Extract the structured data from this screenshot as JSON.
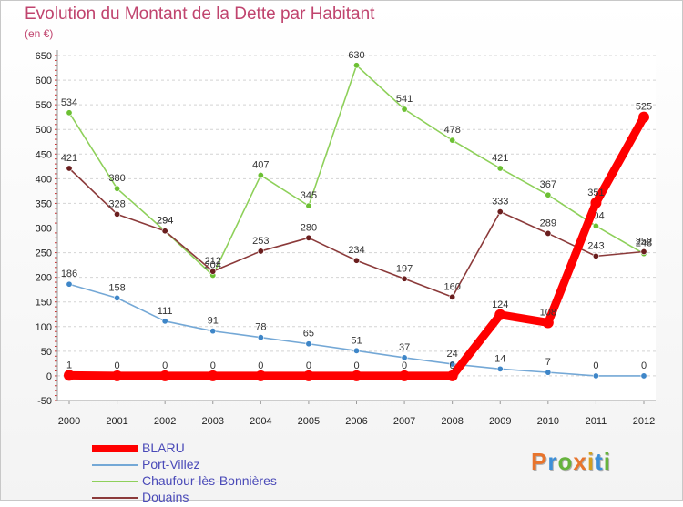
{
  "chart": {
    "title": "Evolution du Montant de la Dette par Habitant",
    "unit": "(en €)"
  },
  "logo": {
    "text": "Proxiti",
    "letters": [
      {
        "ch": "P",
        "color": "#e8742c"
      },
      {
        "ch": "r",
        "color": "#3c8fd8"
      },
      {
        "ch": "o",
        "color": "#66b33c"
      },
      {
        "ch": "x",
        "color": "#e8742c"
      },
      {
        "ch": "i",
        "color": "#d4a020"
      },
      {
        "ch": "t",
        "color": "#3c8fd8"
      },
      {
        "ch": "i",
        "color": "#66b33c"
      }
    ]
  },
  "chart_data": {
    "type": "line",
    "title": "Evolution du Montant de la Dette par Habitant",
    "ylabel": "(en €)",
    "xlabel": "",
    "x": [
      "2000",
      "2001",
      "2002",
      "2003",
      "2004",
      "2005",
      "2006",
      "2007",
      "2008",
      "2009",
      "2010",
      "2011",
      "2012"
    ],
    "ylim": [
      -50,
      650
    ],
    "yticks": [
      -50,
      0,
      50,
      100,
      150,
      200,
      250,
      300,
      350,
      400,
      450,
      500,
      550,
      600,
      650
    ],
    "grid": "horizontal dashed",
    "legend": "bottom-left",
    "series": [
      {
        "name": "Chaufour-lès-Bonnières",
        "color": "#8ed05a",
        "marker": "#6cc033",
        "values": [
          534,
          380,
          294,
          204,
          407,
          345,
          630,
          541,
          478,
          421,
          367,
          304,
          248
        ]
      },
      {
        "name": "Douains",
        "color": "#8b3a3a",
        "marker": "#6a1e1e",
        "values": [
          421,
          328,
          294,
          212,
          253,
          280,
          234,
          197,
          160,
          333,
          289,
          243,
          252
        ]
      },
      {
        "name": "Port-Villez",
        "color": "#74a8d6",
        "marker": "#3e86c8",
        "values": [
          186,
          158,
          111,
          91,
          78,
          65,
          51,
          37,
          24,
          14,
          7,
          0,
          0
        ]
      },
      {
        "name": "BLARU",
        "color": "#ff0000",
        "marker": "#ff0000",
        "values": [
          1,
          0,
          0,
          0,
          0,
          0,
          0,
          0,
          0,
          124,
          108,
          351,
          525
        ]
      }
    ],
    "legend_order": [
      "BLARU",
      "Port-Villez",
      "Chaufour-lès-Bonnières",
      "Douains"
    ]
  }
}
